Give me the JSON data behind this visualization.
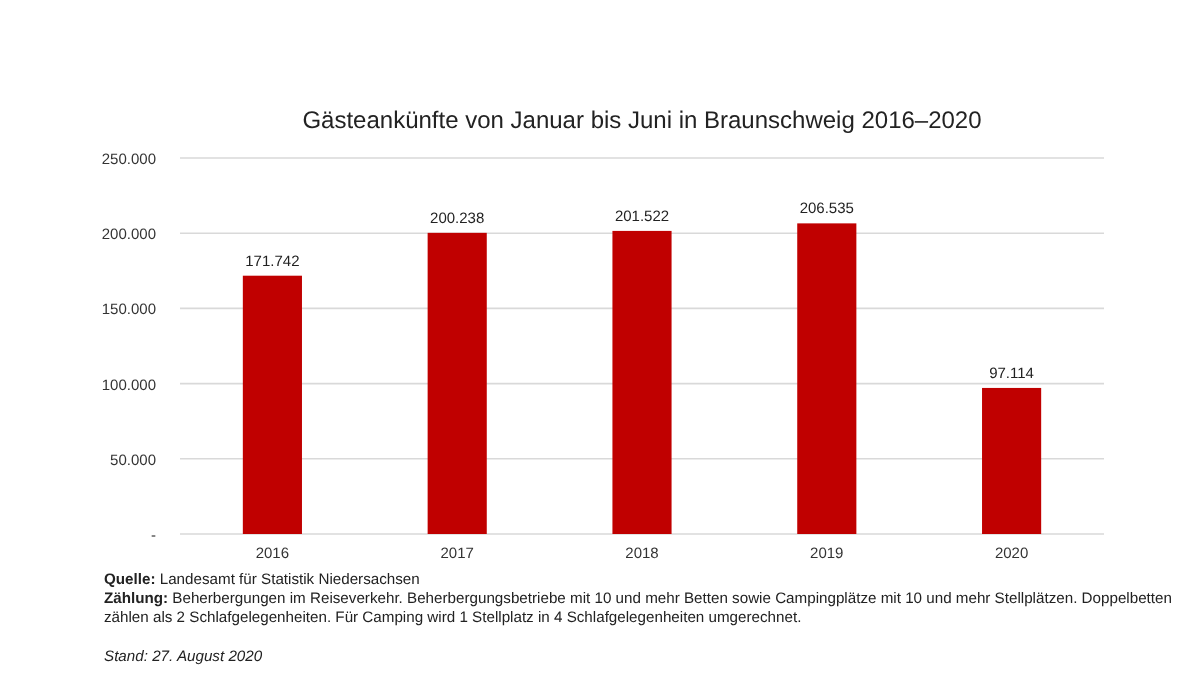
{
  "chart_data": {
    "type": "bar",
    "title": "Gästeankünfte von Januar bis Juni in Braunschweig 2016–2020",
    "categories": [
      "2016",
      "2017",
      "2018",
      "2019",
      "2020"
    ],
    "values": [
      171742,
      200238,
      201522,
      206535,
      97114
    ],
    "value_labels": [
      "171.742",
      "200.238",
      "201.522",
      "206.535",
      "97.114"
    ],
    "color": "#c00000",
    "ylim": [
      0,
      250000
    ],
    "yticks": [
      {
        "value": 0,
        "label": "-"
      },
      {
        "value": 50000,
        "label": "50.000"
      },
      {
        "value": 100000,
        "label": "100.000"
      },
      {
        "value": 150000,
        "label": "150.000"
      },
      {
        "value": 200000,
        "label": "200.000"
      },
      {
        "value": 250000,
        "label": "250.000"
      }
    ],
    "grid": "y",
    "annotations": [
      "Quelle: Landesamt für Statistik Niedersachsen",
      "Zählung: Beherbergungen im Reiseverkehr. Beherbergungsbetriebe mit 10 und mehr Betten sowie Campingplätze mit 10 und mehr Stellplätzen. Doppelbetten zählen als 2 Schlafgelegenheiten. Für Camping wird 1 Stellplatz in 4 Schlafgelegenheiten umgerechnet.",
      "Stand: 27. August 2020"
    ]
  }
}
